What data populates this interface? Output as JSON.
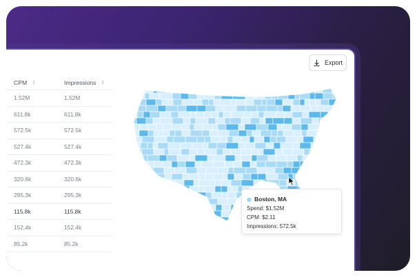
{
  "toolbar": {
    "export_label": "Export"
  },
  "table": {
    "headers": {
      "cpm": "CPM",
      "impressions": "Impressions"
    },
    "rows": [
      {
        "cpm": "1.52M",
        "impressions": "1.52M"
      },
      {
        "cpm": "611.8k",
        "impressions": "611.8k"
      },
      {
        "cpm": "572.5k",
        "impressions": "572.5k"
      },
      {
        "cpm": "527.4k",
        "impressions": "527.4k"
      },
      {
        "cpm": "472.3k",
        "impressions": "472.3k"
      },
      {
        "cpm": "320.6k",
        "impressions": "320.6k"
      },
      {
        "cpm": "295.3k",
        "impressions": "295.3k"
      },
      {
        "cpm": "115.8k",
        "impressions": "115.8k"
      },
      {
        "cpm": "152.4k",
        "impressions": "152.4k"
      },
      {
        "cpm": "85.2k",
        "impressions": "85.2k"
      }
    ]
  },
  "tooltip": {
    "title": "Boston, MA",
    "spend": "Spend: $1.52M",
    "cpm": "CPM: $2.11",
    "impressions": "Impressions: 572.5k"
  },
  "colors": {
    "accent": "#5b35a0",
    "map_light": "#d7efff",
    "map_mid": "#a9dbf6",
    "map_dark": "#5cb9ec"
  },
  "icons": {
    "export": "download-icon",
    "sort": "sort-icon",
    "tooltip_marker": "pin-icon",
    "cursor": "pointer-cursor-icon"
  }
}
